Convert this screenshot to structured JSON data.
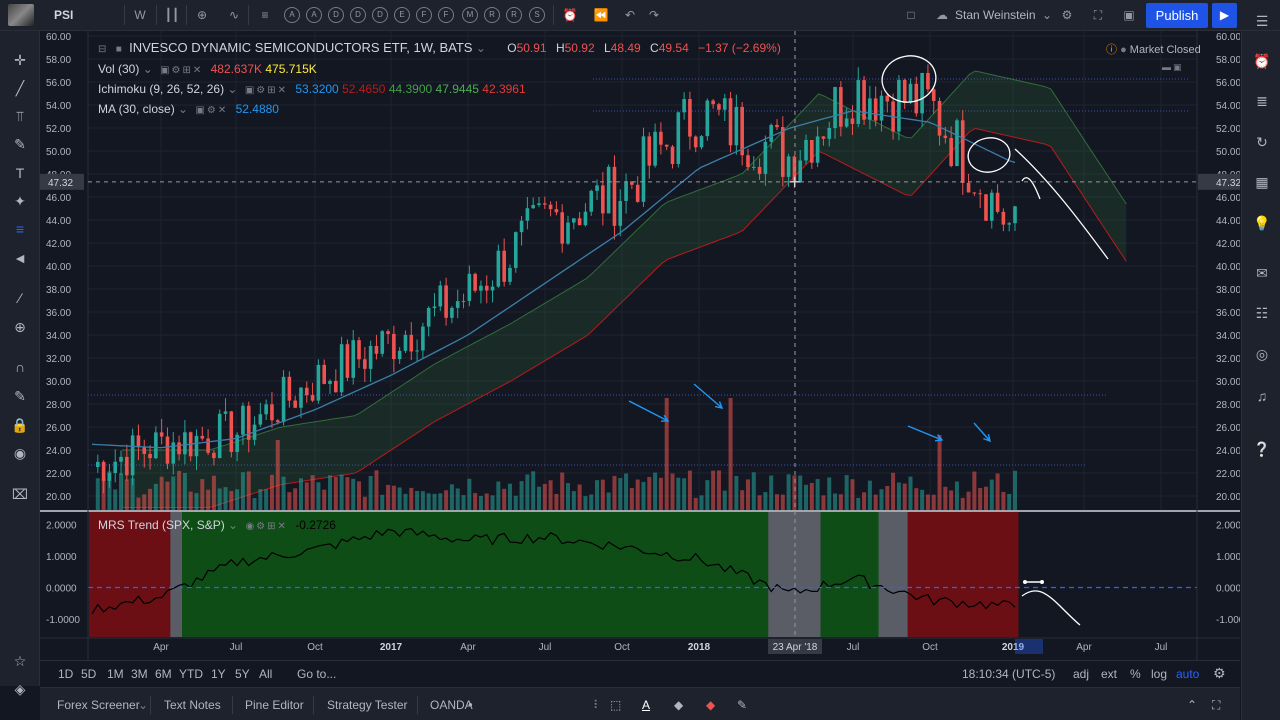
{
  "topbar": {
    "symbol": "PSI",
    "interval": "W",
    "layout_name": "Stan Weinstein",
    "publish_label": "Publish",
    "letter_tools": [
      "A",
      "A",
      "D",
      "D",
      "D",
      "E",
      "F",
      "F",
      "M",
      "R",
      "R",
      "S"
    ]
  },
  "header": {
    "title": "INVESCO DYNAMIC SEMICONDUCTORS ETF, 1W, BATS",
    "ohlc": {
      "o_label": "O",
      "o": "50.91",
      "h_label": "H",
      "h": "50.92",
      "l_label": "L",
      "l": "48.49",
      "c_label": "C",
      "c": "49.54",
      "change": "−1.37 (−2.69%)"
    },
    "market_status": "Market Closed"
  },
  "indicators": {
    "vol": {
      "name": "Vol (30)",
      "v1": "482.637K",
      "v2": "475.715K"
    },
    "ichimoku": {
      "name": "Ichimoku (9, 26, 52, 26)",
      "v1": "53.3200",
      "v2": "52.4650",
      "v3": "44.3900",
      "v4": "47.9445",
      "v5": "42.3961"
    },
    "ma": {
      "name": "MA (30, close)",
      "v1": "52.4880"
    },
    "mrs": {
      "name": "MRS Trend (SPX, S&P)",
      "v1": "-0.2726"
    }
  },
  "price_axis": [
    "60.00",
    "58.00",
    "56.00",
    "54.00",
    "52.00",
    "50.00",
    "48.00",
    "46.00",
    "44.00",
    "42.00",
    "40.00",
    "38.00",
    "36.00",
    "34.00",
    "32.00",
    "30.00",
    "28.00",
    "26.00",
    "24.00",
    "22.00",
    "20.00"
  ],
  "crosshair_price": "47.32",
  "crosshair_date": "23 Apr '18",
  "mrs_axis": [
    "2.0000",
    "1.0000",
    "0.0000",
    "-1.0000"
  ],
  "time_axis": [
    "Apr",
    "Jul",
    "Oct",
    "2017",
    "Apr",
    "Jul",
    "Oct",
    "2018",
    "Jul",
    "Oct",
    "2019",
    "Apr",
    "Jul"
  ],
  "rangebar": {
    "ranges": [
      "1D",
      "5D",
      "1M",
      "3M",
      "6M",
      "YTD",
      "1Y",
      "5Y",
      "All"
    ],
    "goto": "Go to...",
    "clock": "18:10:34 (UTC-5)",
    "options": [
      "adj",
      "ext",
      "%",
      "log",
      "auto"
    ]
  },
  "bottom_tabs": [
    "Forex Screener",
    "Text Notes",
    "Pine Editor",
    "Strategy Tester",
    "OANDA"
  ],
  "colors": {
    "up": "#26a69a",
    "down": "#ef5350",
    "ma": "#3b7fa8",
    "accent": "#2962ff",
    "mrs_green": "#0f4d16",
    "mrs_red": "#6b0f15"
  },
  "chart_data": {
    "type": "candlestick",
    "title": "INVESCO DYNAMIC SEMICONDUCTORS ETF, 1W, BATS",
    "ylim": [
      19,
      60
    ],
    "x": [
      "2016-01",
      "2016-04",
      "2016-07",
      "2016-10",
      "2017-01",
      "2017-04",
      "2017-07",
      "2017-10",
      "2018-01",
      "2018-04",
      "2018-07",
      "2018-10",
      "2019-01"
    ],
    "close": [
      22.5,
      24.5,
      25.5,
      30.0,
      33.5,
      37.5,
      44.0,
      46.5,
      53.5,
      49.5,
      55.5,
      54.0,
      43.0
    ],
    "series": [
      {
        "name": "MA (30, close)",
        "values": [
          24.5,
          24.2,
          25.0,
          27.5,
          30.5,
          34.0,
          38.5,
          43.0,
          48.5,
          52.0,
          53.5,
          52.5,
          49.0
        ]
      }
    ],
    "mrs": {
      "name": "MRS Trend (SPX, S&P)",
      "ylim": [
        -1.5,
        2.2
      ],
      "values": [
        -0.7,
        -0.3,
        0.8,
        1.2,
        1.8,
        1.5,
        1.6,
        1.3,
        0.9,
        -0.2,
        0.3,
        -0.4,
        -0.6
      ]
    }
  }
}
